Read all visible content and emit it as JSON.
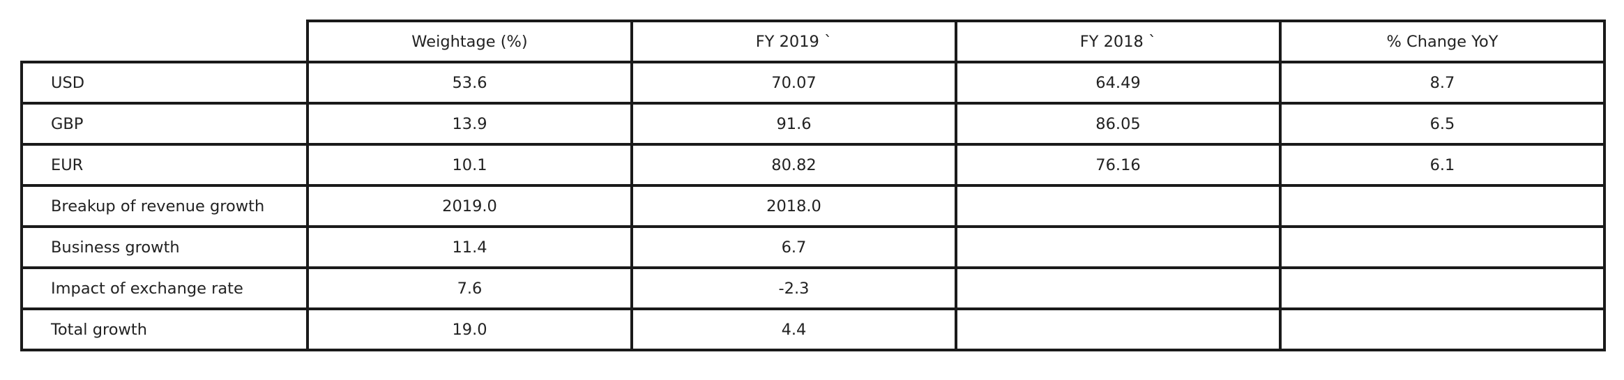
{
  "table": {
    "headers": [
      "",
      "Weightage (%)",
      "FY 2019 `",
      "FY 2018 `",
      "% Change YoY"
    ],
    "rows": [
      {
        "label": "USD",
        "cells": [
          "53.6",
          "70.07",
          "64.49",
          "8.7"
        ]
      },
      {
        "label": "GBP",
        "cells": [
          "13.9",
          "91.6",
          "86.05",
          "6.5"
        ]
      },
      {
        "label": "EUR",
        "cells": [
          "10.1",
          "80.82",
          "76.16",
          "6.1"
        ]
      },
      {
        "label": "Breakup of revenue growth",
        "cells": [
          "2019.0",
          "2018.0",
          "",
          ""
        ]
      },
      {
        "label": "Business growth",
        "cells": [
          "11.4",
          "6.7",
          "",
          ""
        ]
      },
      {
        "label": "Impact of exchange rate",
        "cells": [
          "7.6",
          "-2.3",
          "",
          ""
        ]
      },
      {
        "label": "Total growth",
        "cells": [
          "19.0",
          "4.4",
          "",
          ""
        ]
      }
    ]
  }
}
